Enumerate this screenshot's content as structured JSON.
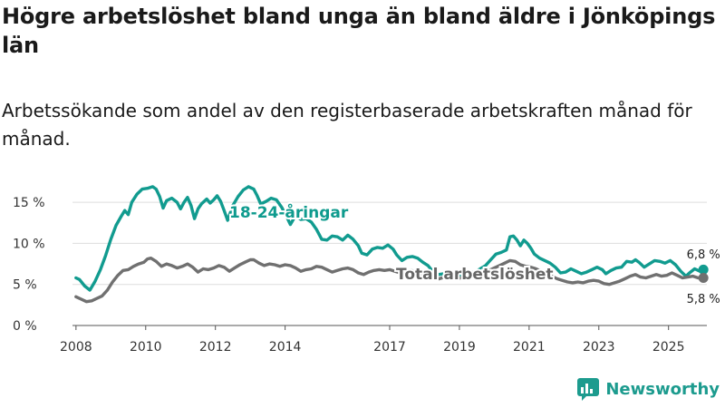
{
  "title": "Högre arbetslöshet bland unga än bland äldre i Jönköpings län",
  "subtitle": "Arbetssökande som andel av den registerbaserade arbetskraften månad för månad.",
  "brand": "Newsworthy",
  "colors": {
    "young": "#119b8f",
    "total": "#707070",
    "brand": "#1c9b8e",
    "grid": "#dddddd"
  },
  "chart_data": {
    "type": "line",
    "title": "Högre arbetslöshet bland unga än bland äldre i Jönköpings län",
    "xlabel": "",
    "ylabel": "",
    "xlim": [
      2007.9,
      2026.1
    ],
    "ylim": [
      0,
      17
    ],
    "x_ticks": [
      2008,
      2010,
      2012,
      2014,
      2017,
      2019,
      2021,
      2023,
      2025
    ],
    "x_tick_labels": [
      "2008",
      "2010",
      "2012",
      "2014",
      "2017",
      "2019",
      "2021",
      "2023",
      "2025"
    ],
    "y_ticks": [
      0,
      5,
      10,
      15
    ],
    "y_tick_labels": [
      "0 %",
      "5 %",
      "10 %",
      "15 %"
    ],
    "series": [
      {
        "name": "18-24-åringar",
        "label": "18-24-åringar",
        "end_label": "6,8 %",
        "points": [
          [
            2008.0,
            5.8
          ],
          [
            2008.1,
            5.6
          ],
          [
            2008.25,
            4.8
          ],
          [
            2008.4,
            4.3
          ],
          [
            2008.55,
            5.4
          ],
          [
            2008.7,
            6.8
          ],
          [
            2008.85,
            8.5
          ],
          [
            2009.0,
            10.5
          ],
          [
            2009.15,
            12.2
          ],
          [
            2009.3,
            13.3
          ],
          [
            2009.4,
            14.0
          ],
          [
            2009.5,
            13.5
          ],
          [
            2009.6,
            15.0
          ],
          [
            2009.75,
            16.0
          ],
          [
            2009.9,
            16.6
          ],
          [
            2010.05,
            16.7
          ],
          [
            2010.2,
            16.9
          ],
          [
            2010.3,
            16.6
          ],
          [
            2010.4,
            15.7
          ],
          [
            2010.5,
            14.3
          ],
          [
            2010.6,
            15.2
          ],
          [
            2010.75,
            15.5
          ],
          [
            2010.9,
            15.0
          ],
          [
            2011.0,
            14.2
          ],
          [
            2011.1,
            15.0
          ],
          [
            2011.2,
            15.6
          ],
          [
            2011.3,
            14.6
          ],
          [
            2011.4,
            13.0
          ],
          [
            2011.5,
            14.2
          ],
          [
            2011.6,
            14.8
          ],
          [
            2011.75,
            15.4
          ],
          [
            2011.85,
            14.9
          ],
          [
            2011.95,
            15.3
          ],
          [
            2012.05,
            15.8
          ],
          [
            2012.15,
            15.1
          ],
          [
            2012.25,
            14.0
          ],
          [
            2012.35,
            12.8
          ],
          [
            2012.5,
            14.6
          ],
          [
            2012.65,
            15.7
          ],
          [
            2012.8,
            16.5
          ],
          [
            2012.95,
            16.9
          ],
          [
            2013.1,
            16.6
          ],
          [
            2013.2,
            15.8
          ],
          [
            2013.3,
            14.8
          ],
          [
            2013.45,
            15.1
          ],
          [
            2013.6,
            15.5
          ],
          [
            2013.75,
            15.3
          ],
          [
            2013.9,
            14.4
          ],
          [
            2014.05,
            13.2
          ],
          [
            2014.15,
            12.3
          ],
          [
            2014.3,
            13.4
          ],
          [
            2014.45,
            12.9
          ],
          [
            2014.6,
            13.0
          ],
          [
            2014.75,
            12.6
          ],
          [
            2014.9,
            11.7
          ],
          [
            2015.05,
            10.5
          ],
          [
            2015.2,
            10.4
          ],
          [
            2015.35,
            10.9
          ],
          [
            2015.5,
            10.8
          ],
          [
            2015.65,
            10.4
          ],
          [
            2015.8,
            11.0
          ],
          [
            2015.95,
            10.5
          ],
          [
            2016.1,
            9.7
          ],
          [
            2016.2,
            8.8
          ],
          [
            2016.35,
            8.6
          ],
          [
            2016.5,
            9.3
          ],
          [
            2016.65,
            9.5
          ],
          [
            2016.8,
            9.4
          ],
          [
            2016.95,
            9.8
          ],
          [
            2017.1,
            9.3
          ],
          [
            2017.2,
            8.6
          ],
          [
            2017.35,
            7.9
          ],
          [
            2017.5,
            8.3
          ],
          [
            2017.65,
            8.4
          ],
          [
            2017.8,
            8.2
          ],
          [
            2017.95,
            7.7
          ],
          [
            2018.1,
            7.3
          ],
          [
            2018.25,
            6.5
          ],
          [
            2018.4,
            6.2
          ],
          [
            2018.55,
            6.3
          ],
          [
            2018.7,
            6.5
          ],
          [
            2018.85,
            6.1
          ],
          [
            2019.0,
            6.0
          ],
          [
            2019.15,
            6.2
          ],
          [
            2019.3,
            6.4
          ],
          [
            2019.45,
            6.5
          ],
          [
            2019.6,
            6.9
          ],
          [
            2019.75,
            7.3
          ],
          [
            2019.9,
            8.0
          ],
          [
            2020.05,
            8.7
          ],
          [
            2020.2,
            8.9
          ],
          [
            2020.35,
            9.2
          ],
          [
            2020.45,
            10.8
          ],
          [
            2020.55,
            10.9
          ],
          [
            2020.65,
            10.4
          ],
          [
            2020.75,
            9.7
          ],
          [
            2020.85,
            10.4
          ],
          [
            2020.95,
            10.0
          ],
          [
            2021.05,
            9.4
          ],
          [
            2021.15,
            8.7
          ],
          [
            2021.3,
            8.2
          ],
          [
            2021.45,
            7.9
          ],
          [
            2021.6,
            7.6
          ],
          [
            2021.75,
            7.1
          ],
          [
            2021.9,
            6.4
          ],
          [
            2022.05,
            6.5
          ],
          [
            2022.2,
            6.9
          ],
          [
            2022.35,
            6.6
          ],
          [
            2022.5,
            6.3
          ],
          [
            2022.65,
            6.5
          ],
          [
            2022.8,
            6.8
          ],
          [
            2022.95,
            7.1
          ],
          [
            2023.1,
            6.8
          ],
          [
            2023.2,
            6.3
          ],
          [
            2023.35,
            6.7
          ],
          [
            2023.5,
            7.0
          ],
          [
            2023.65,
            7.1
          ],
          [
            2023.8,
            7.8
          ],
          [
            2023.95,
            7.7
          ],
          [
            2024.05,
            8.0
          ],
          [
            2024.15,
            7.7
          ],
          [
            2024.3,
            7.1
          ],
          [
            2024.45,
            7.5
          ],
          [
            2024.6,
            7.9
          ],
          [
            2024.75,
            7.8
          ],
          [
            2024.9,
            7.6
          ],
          [
            2025.05,
            7.9
          ],
          [
            2025.2,
            7.4
          ],
          [
            2025.35,
            6.6
          ],
          [
            2025.5,
            6.0
          ],
          [
            2025.6,
            6.4
          ],
          [
            2025.75,
            6.9
          ],
          [
            2025.9,
            6.6
          ],
          [
            2026.0,
            6.8
          ]
        ]
      },
      {
        "name": "Total arbetslöshet",
        "label": "Total arbetslöshet",
        "end_label": "5,8 %",
        "points": [
          [
            2008.0,
            3.5
          ],
          [
            2008.15,
            3.2
          ],
          [
            2008.3,
            2.9
          ],
          [
            2008.45,
            3.0
          ],
          [
            2008.6,
            3.3
          ],
          [
            2008.75,
            3.6
          ],
          [
            2008.9,
            4.3
          ],
          [
            2009.05,
            5.3
          ],
          [
            2009.2,
            6.1
          ],
          [
            2009.35,
            6.7
          ],
          [
            2009.5,
            6.8
          ],
          [
            2009.65,
            7.2
          ],
          [
            2009.8,
            7.5
          ],
          [
            2009.95,
            7.7
          ],
          [
            2010.05,
            8.1
          ],
          [
            2010.15,
            8.2
          ],
          [
            2010.3,
            7.8
          ],
          [
            2010.45,
            7.2
          ],
          [
            2010.6,
            7.5
          ],
          [
            2010.75,
            7.3
          ],
          [
            2010.9,
            7.0
          ],
          [
            2011.05,
            7.2
          ],
          [
            2011.2,
            7.5
          ],
          [
            2011.35,
            7.1
          ],
          [
            2011.5,
            6.5
          ],
          [
            2011.65,
            6.9
          ],
          [
            2011.8,
            6.8
          ],
          [
            2011.95,
            7.0
          ],
          [
            2012.1,
            7.3
          ],
          [
            2012.25,
            7.1
          ],
          [
            2012.4,
            6.6
          ],
          [
            2012.55,
            7.0
          ],
          [
            2012.7,
            7.4
          ],
          [
            2012.85,
            7.7
          ],
          [
            2013.0,
            8.0
          ],
          [
            2013.1,
            8.0
          ],
          [
            2013.25,
            7.6
          ],
          [
            2013.4,
            7.3
          ],
          [
            2013.55,
            7.5
          ],
          [
            2013.7,
            7.4
          ],
          [
            2013.85,
            7.2
          ],
          [
            2014.0,
            7.4
          ],
          [
            2014.15,
            7.3
          ],
          [
            2014.3,
            7.0
          ],
          [
            2014.45,
            6.6
          ],
          [
            2014.6,
            6.8
          ],
          [
            2014.75,
            6.9
          ],
          [
            2014.9,
            7.2
          ],
          [
            2015.05,
            7.1
          ],
          [
            2015.2,
            6.8
          ],
          [
            2015.35,
            6.5
          ],
          [
            2015.5,
            6.7
          ],
          [
            2015.65,
            6.9
          ],
          [
            2015.8,
            7.0
          ],
          [
            2015.95,
            6.8
          ],
          [
            2016.1,
            6.4
          ],
          [
            2016.25,
            6.2
          ],
          [
            2016.4,
            6.5
          ],
          [
            2016.55,
            6.7
          ],
          [
            2016.7,
            6.8
          ],
          [
            2016.85,
            6.7
          ],
          [
            2017.0,
            6.8
          ],
          [
            2017.15,
            6.6
          ],
          [
            2017.3,
            6.4
          ],
          [
            2017.45,
            6.5
          ],
          [
            2017.6,
            6.7
          ],
          [
            2017.75,
            6.6
          ],
          [
            2017.9,
            6.3
          ],
          [
            2018.05,
            6.1
          ],
          [
            2018.2,
            5.9
          ],
          [
            2018.35,
            5.6
          ],
          [
            2018.5,
            5.8
          ],
          [
            2018.65,
            6.0
          ],
          [
            2018.8,
            5.9
          ],
          [
            2018.95,
            5.7
          ],
          [
            2019.1,
            5.9
          ],
          [
            2019.25,
            6.0
          ],
          [
            2019.4,
            6.1
          ],
          [
            2019.55,
            6.3
          ],
          [
            2019.7,
            6.5
          ],
          [
            2019.85,
            6.7
          ],
          [
            2020.0,
            7.0
          ],
          [
            2020.15,
            7.3
          ],
          [
            2020.3,
            7.6
          ],
          [
            2020.45,
            7.9
          ],
          [
            2020.6,
            7.8
          ],
          [
            2020.75,
            7.4
          ],
          [
            2020.9,
            7.2
          ],
          [
            2021.05,
            7.1
          ],
          [
            2021.2,
            6.9
          ],
          [
            2021.35,
            6.6
          ],
          [
            2021.5,
            6.3
          ],
          [
            2021.65,
            6.0
          ],
          [
            2021.8,
            5.7
          ],
          [
            2021.95,
            5.5
          ],
          [
            2022.1,
            5.3
          ],
          [
            2022.25,
            5.2
          ],
          [
            2022.4,
            5.3
          ],
          [
            2022.55,
            5.2
          ],
          [
            2022.7,
            5.4
          ],
          [
            2022.85,
            5.5
          ],
          [
            2023.0,
            5.4
          ],
          [
            2023.15,
            5.1
          ],
          [
            2023.3,
            5.0
          ],
          [
            2023.45,
            5.2
          ],
          [
            2023.6,
            5.4
          ],
          [
            2023.75,
            5.7
          ],
          [
            2023.9,
            6.0
          ],
          [
            2024.05,
            6.2
          ],
          [
            2024.2,
            5.9
          ],
          [
            2024.35,
            5.8
          ],
          [
            2024.5,
            6.0
          ],
          [
            2024.65,
            6.2
          ],
          [
            2024.8,
            6.0
          ],
          [
            2024.95,
            6.1
          ],
          [
            2025.1,
            6.4
          ],
          [
            2025.25,
            6.1
          ],
          [
            2025.4,
            5.8
          ],
          [
            2025.55,
            5.9
          ],
          [
            2025.7,
            6.0
          ],
          [
            2025.85,
            5.8
          ],
          [
            2026.0,
            5.8
          ]
        ]
      }
    ]
  }
}
